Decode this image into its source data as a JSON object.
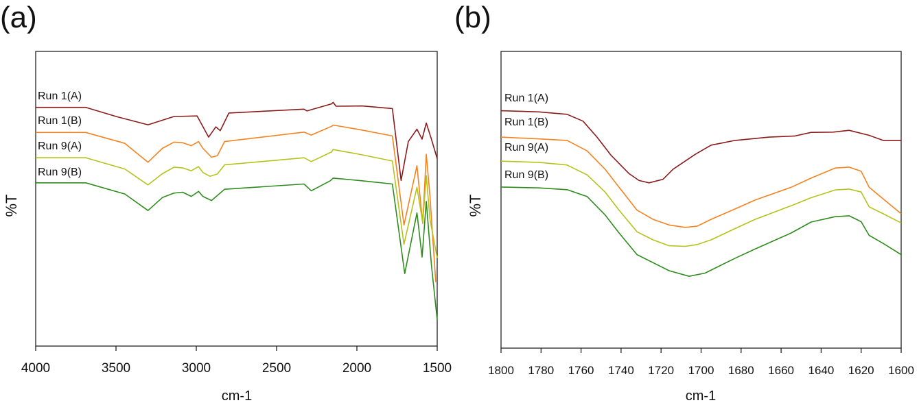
{
  "chart_data": [
    {
      "panel_label": "(a)",
      "type": "line",
      "xlabel": "cm-1",
      "ylabel": "%T",
      "xlim": [
        4000,
        1500
      ],
      "x_reversed": true,
      "ylim": [
        0,
        100
      ],
      "y_ticks_shown": false,
      "grid": false,
      "legend": "inline labels at left of each curve",
      "x_ticks": [
        "4000",
        "3500",
        "3000",
        "2500",
        "2000",
        "1500"
      ],
      "x_tick_values": [
        4000,
        3500,
        3000,
        2500,
        2000,
        1500
      ],
      "series": [
        {
          "name": "Run 1(A)",
          "color": "#8b1a1a",
          "x": [
            4000,
            3688,
            3499,
            3301,
            3139,
            2995,
            2923,
            2878,
            2851,
            2797,
            2329,
            2311,
            2157,
            2148,
            2130,
            1968,
            1779,
            1725,
            1680,
            1626,
            1594,
            1568,
            1536,
            1500
          ],
          "y": [
            81.0,
            81.0,
            77.9,
            75.1,
            77.9,
            78.1,
            70.9,
            74.4,
            73.1,
            79.1,
            80.4,
            79.8,
            82.2,
            82.7,
            81.4,
            81.5,
            80.6,
            56.2,
            69.4,
            73.6,
            70.2,
            75.7,
            70.2,
            63.6
          ]
        },
        {
          "name": "Run 1(B)",
          "color": "#f58220",
          "x": [
            4000,
            3688,
            3445,
            3301,
            3211,
            3139,
            3085,
            3031,
            2986,
            2959,
            2905,
            2869,
            2824,
            2329,
            2284,
            2157,
            2148,
            1968,
            1779,
            1707,
            1626,
            1590,
            1568,
            1545,
            1509
          ],
          "y": [
            72.5,
            72.5,
            68.8,
            62.4,
            67.1,
            69.2,
            69.0,
            68.0,
            69.4,
            67.1,
            64.1,
            64.6,
            69.4,
            72.6,
            71.6,
            74.6,
            75.0,
            73.3,
            71.3,
            41.1,
            61.2,
            41.6,
            65.1,
            50.8,
            21.7
          ]
        },
        {
          "name": "Run 9(A)",
          "color": "#b5c21b",
          "x": [
            4000,
            3688,
            3445,
            3301,
            3211,
            3139,
            3085,
            3031,
            2986,
            2959,
            2914,
            2869,
            2824,
            2329,
            2284,
            2157,
            2148,
            1968,
            1779,
            1707,
            1626,
            1590,
            1568,
            1545,
            1500
          ],
          "y": [
            63.9,
            63.9,
            60.1,
            54.7,
            58.5,
            60.7,
            60.5,
            59.5,
            60.9,
            58.9,
            57.6,
            58.4,
            61.5,
            63.9,
            62.6,
            65.9,
            66.7,
            64.9,
            62.8,
            34.5,
            53.9,
            41.9,
            57.8,
            43.0,
            29.9
          ]
        },
        {
          "name": "Run 9(B)",
          "color": "#2e8b1e",
          "x": [
            4000,
            3688,
            3445,
            3301,
            3211,
            3139,
            3085,
            3031,
            2986,
            2959,
            2905,
            2824,
            2329,
            2284,
            2166,
            2148,
            1968,
            1779,
            1702,
            1626,
            1594,
            1568,
            1536,
            1500
          ],
          "y": [
            55.4,
            55.4,
            51.6,
            46.0,
            50.4,
            51.9,
            52.2,
            50.8,
            52.5,
            50.8,
            49.4,
            53.2,
            55.0,
            52.7,
            56.1,
            57.0,
            56.1,
            55.0,
            24.6,
            45.2,
            30.2,
            49.1,
            27.5,
            8.9
          ]
        }
      ]
    },
    {
      "panel_label": "(b)",
      "type": "line",
      "xlabel": "cm-1",
      "ylabel": "%T",
      "xlim": [
        1800,
        1600
      ],
      "x_reversed": true,
      "ylim": [
        0,
        100
      ],
      "y_ticks_shown": false,
      "grid": false,
      "legend": "inline labels at left of each curve",
      "x_ticks": [
        "1800",
        "1780",
        "1760",
        "1740",
        "1720",
        "1700",
        "1680",
        "1660",
        "1640",
        "1620",
        "1600"
      ],
      "x_tick_values": [
        1800,
        1780,
        1760,
        1740,
        1720,
        1700,
        1680,
        1660,
        1640,
        1620,
        1600
      ],
      "series": [
        {
          "name": "Run 1(A)",
          "color": "#8b1a1a",
          "x": [
            1800,
            1781,
            1767,
            1759,
            1752,
            1745,
            1736,
            1731,
            1726,
            1719,
            1714,
            1703,
            1695,
            1683,
            1666,
            1653,
            1645,
            1634,
            1626,
            1616,
            1609,
            1600
          ],
          "y": [
            80.0,
            79.6,
            78.8,
            76.5,
            71.1,
            65.0,
            58.8,
            56.5,
            55.7,
            56.9,
            60.3,
            65.3,
            68.4,
            70.0,
            71.1,
            71.5,
            72.7,
            72.8,
            73.4,
            71.7,
            70.0,
            70.0
          ]
        },
        {
          "name": "Run 1(B)",
          "color": "#f58220",
          "x": [
            1800,
            1781,
            1767,
            1757,
            1748,
            1741,
            1732,
            1724,
            1716,
            1708,
            1702,
            1695,
            1683,
            1673,
            1655,
            1645,
            1633,
            1626,
            1620,
            1616,
            1609,
            1600
          ],
          "y": [
            71.1,
            70.5,
            70.0,
            66.5,
            60.3,
            54.2,
            46.5,
            43.4,
            41.5,
            40.7,
            41.1,
            43.4,
            46.9,
            49.9,
            54.2,
            57.3,
            60.7,
            61.0,
            59.6,
            54.2,
            50.3,
            45.3
          ]
        },
        {
          "name": "Run 9(A)",
          "color": "#b5c21b",
          "x": [
            1800,
            1781,
            1767,
            1757,
            1748,
            1741,
            1732,
            1724,
            1716,
            1708,
            1702,
            1695,
            1683,
            1673,
            1655,
            1645,
            1633,
            1626,
            1620,
            1616,
            1609,
            1600
          ],
          "y": [
            63.0,
            62.6,
            61.7,
            58.4,
            52.6,
            46.5,
            39.2,
            36.5,
            34.5,
            34.3,
            34.9,
            36.5,
            40.3,
            43.4,
            48.0,
            50.7,
            53.3,
            53.6,
            52.6,
            47.6,
            45.3,
            42.2
          ]
        },
        {
          "name": "Run 9(B)",
          "color": "#2e8b1e",
          "x": [
            1800,
            1781,
            1767,
            1757,
            1748,
            1741,
            1732,
            1724,
            1716,
            1706,
            1698,
            1683,
            1673,
            1655,
            1645,
            1633,
            1626,
            1620,
            1616,
            1609,
            1600
          ],
          "y": [
            54.3,
            54.0,
            53.4,
            51.1,
            44.9,
            38.8,
            31.5,
            28.8,
            26.1,
            24.2,
            25.3,
            30.3,
            33.4,
            38.8,
            42.5,
            44.3,
            44.6,
            42.6,
            38.0,
            35.3,
            31.5
          ]
        }
      ]
    }
  ]
}
